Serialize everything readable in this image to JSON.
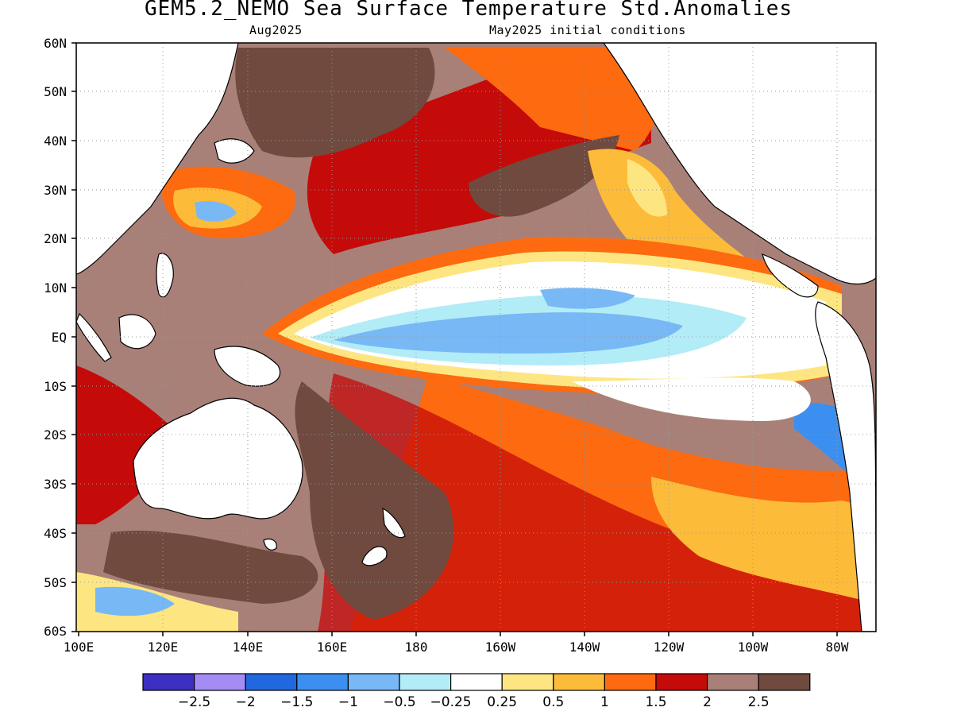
{
  "title": "GEM5.2_NEMO Sea Surface Temperature Std.Anomalies",
  "subtitle_left": "Aug2025",
  "subtitle_right": "May2025 initial conditions",
  "map": {
    "lat_labels": [
      "60N",
      "50N",
      "40N",
      "30N",
      "20N",
      "10N",
      "EQ",
      "10S",
      "20S",
      "30S",
      "40S",
      "50S",
      "60S"
    ],
    "lon_labels": [
      "100E",
      "120E",
      "140E",
      "160E",
      "180",
      "160W",
      "140W",
      "120W",
      "100W",
      "80W"
    ],
    "lon_range": [
      100,
      290
    ],
    "lat_range": [
      -60,
      60
    ],
    "grid": "dotted"
  },
  "colorbar": {
    "colors": [
      "#3d2fc2",
      "#a58cf5",
      "#2167e0",
      "#3b8ff0",
      "#78b8f5",
      "#b2ecf7",
      "#ffffff",
      "#fde682",
      "#fdbb3a",
      "#fd6a0f",
      "#c50a0a",
      "#a98078",
      "#704a3e"
    ],
    "labels": [
      "−2.5",
      "−2",
      "−1.5",
      "−1",
      "−0.5",
      "−0.25",
      "0.25",
      "0.5",
      "1",
      "1.5",
      "2",
      "2.5"
    ]
  },
  "colors": {
    "ocean_background": "#a98078",
    "land": "#ffffff",
    "coast": "#000000"
  }
}
